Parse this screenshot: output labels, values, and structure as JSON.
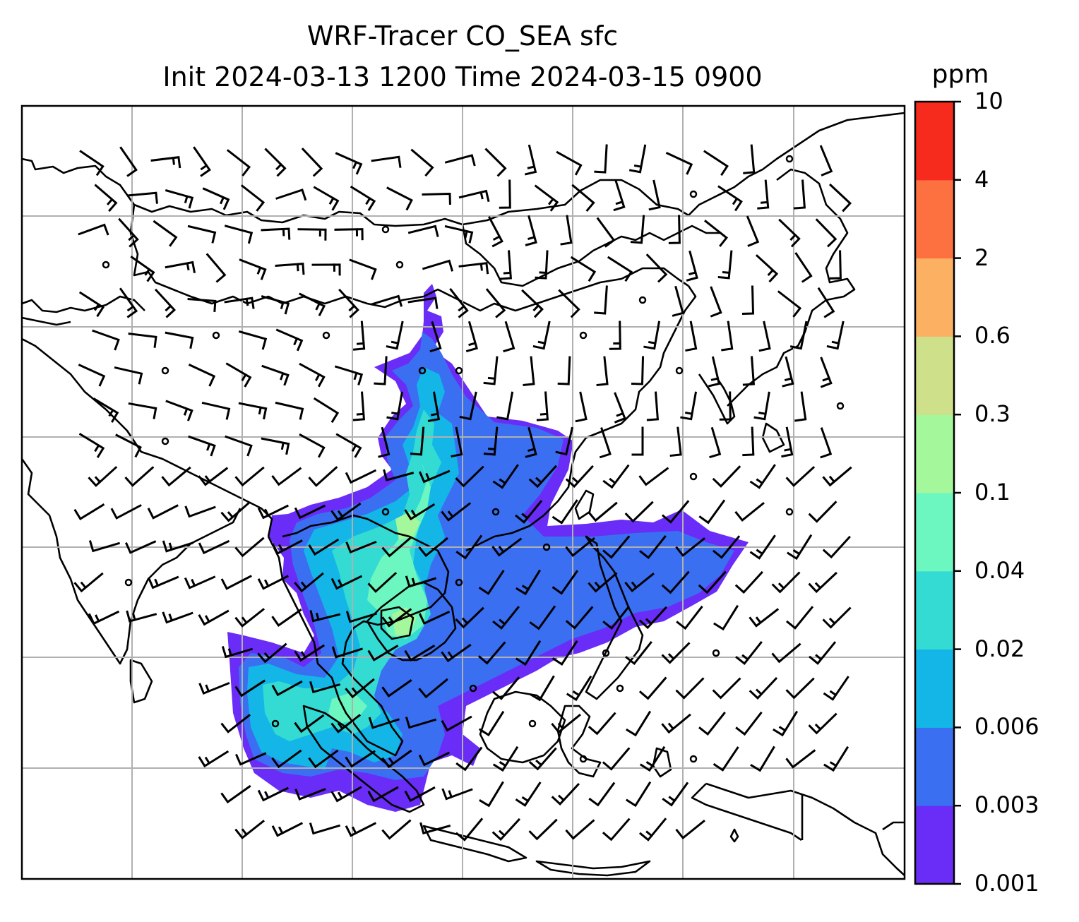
{
  "title": {
    "line1": "WRF-Tracer CO_SEA sfc",
    "line2": "Init 2024-03-13 1200 Time 2024-03-15 0900"
  },
  "colorbar": {
    "unit": "ppm",
    "levels": [
      "0.001",
      "0.003",
      "0.006",
      "0.02",
      "0.04",
      "0.1",
      "0.3",
      "0.6",
      "2",
      "4",
      "10"
    ],
    "colors": [
      "#6a2cf7",
      "#3a6ff2",
      "#13b6e6",
      "#33dbd3",
      "#6cf7c0",
      "#a4f79b",
      "#cfe08a",
      "#fcb062",
      "#fd7040",
      "#f62a1d"
    ]
  },
  "map": {
    "gridlines": true,
    "coastline_color": "#000000",
    "barb_color": "#000000"
  }
}
